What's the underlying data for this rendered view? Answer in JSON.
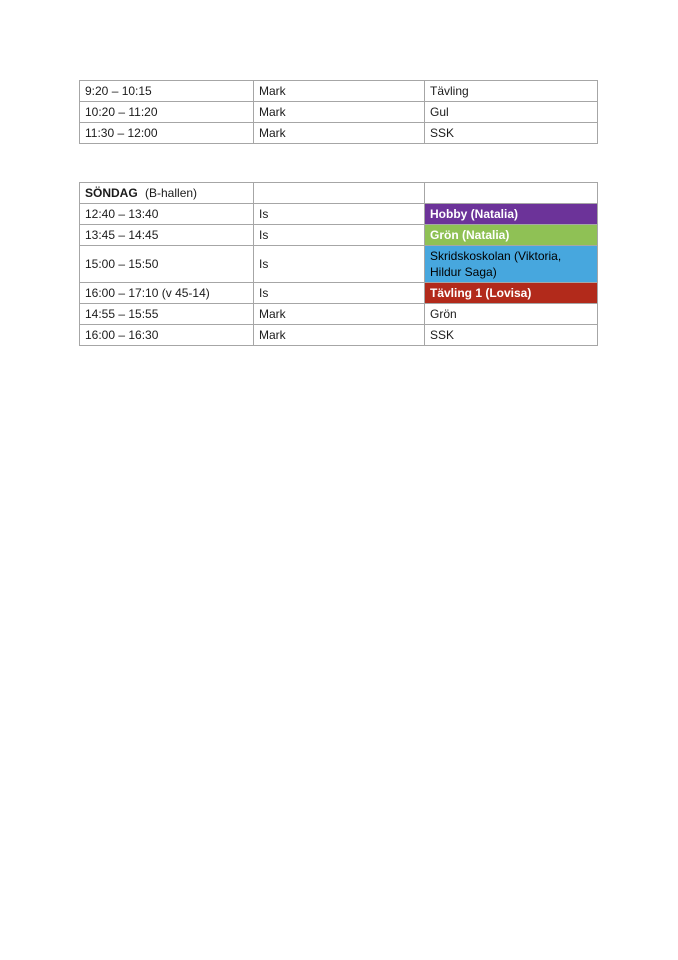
{
  "page": {
    "background": "#ffffff"
  },
  "colors": {
    "table_border": "#a6a6a6",
    "text": "#1b1b1b",
    "purple": "#6c3399",
    "green": "#8fc155",
    "blue": "#47a7de",
    "red": "#b22a1b"
  },
  "table_morning": {
    "rows": [
      {
        "time": "9:20 – 10:15",
        "surface": "Mark",
        "group": "Tävling",
        "bg": "",
        "color": "#1b1b1b",
        "bold": false
      },
      {
        "time": "10:20 – 11:20",
        "surface": "Mark",
        "group": "Gul",
        "bg": "",
        "color": "#1b1b1b",
        "bold": false
      },
      {
        "time": "11:30 – 12:00",
        "surface": "Mark",
        "group": "SSK",
        "bg": "",
        "color": "#1b1b1b",
        "bold": false
      }
    ]
  },
  "table_sunday": {
    "header": {
      "day": "SÖNDAG",
      "hall": "(B-hallen)"
    },
    "rows": [
      {
        "time": "12:40 – 13:40",
        "surface": "Is",
        "group": "Hobby (Natalia)",
        "bg": "#6c3399",
        "color": "#ffffff",
        "bold": true
      },
      {
        "time": "13:45 – 14:45",
        "surface": "Is",
        "group": "Grön (Natalia)",
        "bg": "#8fc155",
        "color": "#ffffff",
        "bold": true
      },
      {
        "time": "15:00 – 15:50",
        "surface": "Is",
        "group": "Skridskoskolan (Viktoria, Hildur Saga)",
        "bg": "#47a7de",
        "color": "#000000",
        "bold": false
      },
      {
        "time": "16:00 – 17:10 (v 45-14)",
        "surface": "Is",
        "group": "Tävling 1 (Lovisa)",
        "bg": "#b22a1b",
        "color": "#ffffff",
        "bold": true
      },
      {
        "time": "14:55 – 15:55",
        "surface": "Mark",
        "group": "Grön",
        "bg": "",
        "color": "#1b1b1b",
        "bold": false
      },
      {
        "time": "16:00 – 16:30",
        "surface": "Mark",
        "group": "SSK",
        "bg": "",
        "color": "#1b1b1b",
        "bold": false
      }
    ]
  }
}
